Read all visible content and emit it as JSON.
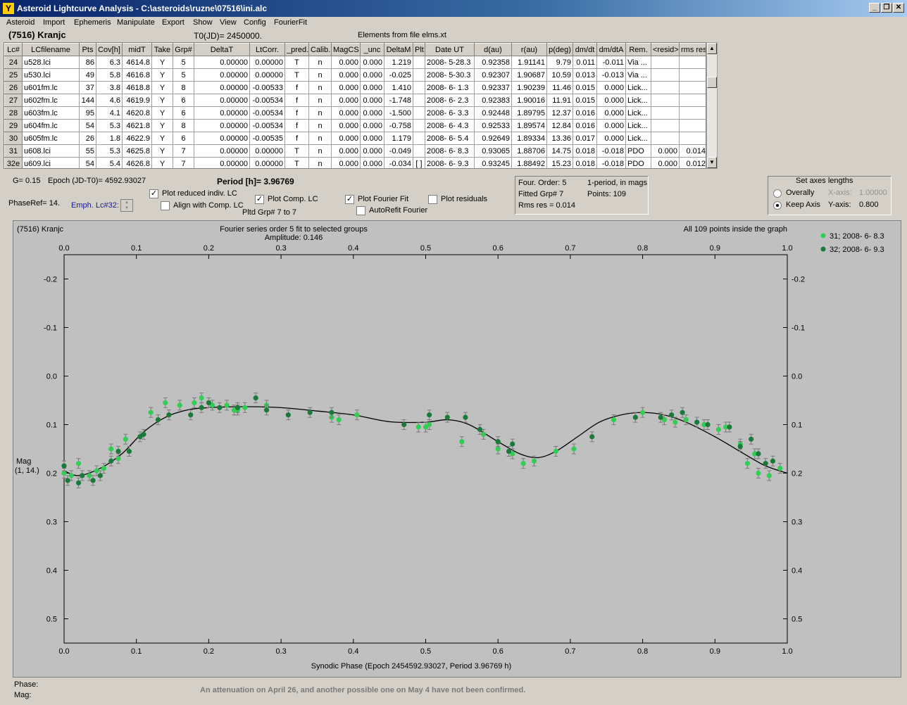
{
  "window": {
    "title": "Asteroid Lightcurve Analysis - C:\\asteroids\\ruzne\\07516\\ini.alc",
    "icon": "app-icon"
  },
  "menu": [
    "Asteroid",
    "Import",
    "Ephemeris",
    "Manipulate",
    "Export",
    "Show",
    "View",
    "Config",
    "FourierFit"
  ],
  "header": {
    "object": "(7516) Kranjc",
    "t0": "T0(JD)= 2450000.",
    "elements": "Elements from file elms.xt"
  },
  "table": {
    "columns": [
      "Lc#",
      "LCfilename",
      "Pts",
      "Cov[h]",
      "midT",
      "Take",
      "Grp#",
      "DeltaT",
      "LtCorr.",
      "_pred.",
      "Calib.",
      "MagCS",
      "_unc",
      "DeltaM",
      "Plt",
      "Date UT",
      "d(au)",
      "r(au)",
      "p(deg)",
      "dm/dt",
      "dm/dtA",
      "Rem.",
      "<resid>",
      "rms res"
    ],
    "rows": [
      [
        "24",
        "u528.lci",
        "86",
        "6.3",
        "4614.8",
        "Y",
        "5",
        "0.00000",
        "0.00000",
        "T",
        "n",
        "0.000",
        "0.000",
        "1.219",
        "",
        "2008- 5-28.3",
        "0.92358",
        "1.91141",
        "9.79",
        "0.011",
        "-0.011",
        "Via ...",
        "",
        ""
      ],
      [
        "25",
        "u530.lci",
        "49",
        "5.8",
        "4616.8",
        "Y",
        "5",
        "0.00000",
        "0.00000",
        "T",
        "n",
        "0.000",
        "0.000",
        "-0.025",
        "",
        "2008- 5-30.3",
        "0.92307",
        "1.90687",
        "10.59",
        "0.013",
        "-0.013",
        "Via ...",
        "",
        ""
      ],
      [
        "26",
        "u601fm.lc",
        "37",
        "3.8",
        "4618.8",
        "Y",
        "8",
        "0.00000",
        "-0.00533",
        "f",
        "n",
        "0.000",
        "0.000",
        "1.410",
        "",
        "2008- 6- 1.3",
        "0.92337",
        "1.90239",
        "11.46",
        "0.015",
        "0.000",
        "Lick...",
        "",
        ""
      ],
      [
        "27",
        "u602fm.lc",
        "144",
        "4.6",
        "4619.9",
        "Y",
        "6",
        "0.00000",
        "-0.00534",
        "f",
        "n",
        "0.000",
        "0.000",
        "-1.748",
        "",
        "2008- 6- 2.3",
        "0.92383",
        "1.90016",
        "11.91",
        "0.015",
        "0.000",
        "Lick...",
        "",
        ""
      ],
      [
        "28",
        "u603fm.lc",
        "95",
        "4.1",
        "4620.8",
        "Y",
        "6",
        "0.00000",
        "-0.00534",
        "f",
        "n",
        "0.000",
        "0.000",
        "-1.500",
        "",
        "2008- 6- 3.3",
        "0.92448",
        "1.89795",
        "12.37",
        "0.016",
        "0.000",
        "Lick...",
        "",
        ""
      ],
      [
        "29",
        "u604fm.lc",
        "54",
        "5.3",
        "4621.8",
        "Y",
        "8",
        "0.00000",
        "-0.00534",
        "f",
        "n",
        "0.000",
        "0.000",
        "-0.758",
        "",
        "2008- 6- 4.3",
        "0.92533",
        "1.89574",
        "12.84",
        "0.016",
        "0.000",
        "Lick...",
        "",
        ""
      ],
      [
        "30",
        "u605fm.lc",
        "26",
        "1.8",
        "4622.9",
        "Y",
        "6",
        "0.00000",
        "-0.00535",
        "f",
        "n",
        "0.000",
        "0.000",
        "1.179",
        "",
        "2008- 6- 5.4",
        "0.92649",
        "1.89334",
        "13.36",
        "0.017",
        "0.000",
        "Lick...",
        "",
        ""
      ],
      [
        "31",
        "u608.lci",
        "55",
        "5.3",
        "4625.8",
        "Y",
        "7",
        "0.00000",
        "0.00000",
        "T",
        "n",
        "0.000",
        "0.000",
        "-0.049",
        "",
        "2008- 6- 8.3",
        "0.93065",
        "1.88706",
        "14.75",
        "0.018",
        "-0.018",
        "PDO",
        "0.000",
        "0.014"
      ],
      [
        "32e",
        "u609.lci",
        "54",
        "5.4",
        "4626.8",
        "Y",
        "7",
        "0.00000",
        "0.00000",
        "T",
        "n",
        "0.000",
        "0.000",
        "-0.034",
        "[ ]",
        "2008- 6- 9.3",
        "0.93245",
        "1.88492",
        "15.23",
        "0.018",
        "-0.018",
        "PDO",
        "0.000",
        "0.012"
      ]
    ]
  },
  "controls": {
    "g": "G= 0.15",
    "epoch": "Epoch (JD-T0)= 4592.93027",
    "period": "Period [h]= 3.96769",
    "phaseref": "PhaseRef= 14.",
    "emph": "Emph. Lc#32:",
    "plot_reduced": "Plot reduced indiv. LC",
    "align_comp": "Align with Comp. LC",
    "plot_comp": "Plot Comp. LC",
    "pltd_grp": "Pltd Grp#  7   to   7",
    "plot_fourier": "Plot Fourier Fit",
    "autorefit": "AutoRefit Fourier",
    "plot_residuals": "Plot residuals",
    "four_order": "Four. Order:  5",
    "one_period": "1-period, in mags",
    "fitted_grp": "Fitted Grp# 7",
    "points": "Points: 109",
    "rms": "Rms res      = 0.014",
    "axes_title": "Set axes lengths",
    "overally": "Overally",
    "keep_axis": "Keep Axis",
    "xaxis_label": "X-axis:",
    "xaxis_val": "1.00000",
    "yaxis_label": "Y-axis:",
    "yaxis_val": "0.800"
  },
  "plot": {
    "object": "(7516) Kranjc",
    "fit_title": "Fourier series order 5 fit to selected groups",
    "amplitude": "Amplitude: 0.146",
    "points_note": "All 109 points inside the graph",
    "ylabel": "Mag",
    "ylabel2": "(1, 14.)",
    "xlabel": "Synodic Phase (Epoch 2454592.93027, Period 3.96769 h)",
    "legend": [
      {
        "label": "31; 2008- 6- 8.3",
        "color": "#33cc55"
      },
      {
        "label": "32; 2008- 6- 9.3",
        "color": "#1a7a3a"
      }
    ]
  },
  "chart_data": {
    "type": "scatter",
    "xlim": [
      0.0,
      1.0
    ],
    "ylim": [
      -0.25,
      0.55
    ],
    "y_inverted": true,
    "x_ticks": [
      "0.0",
      "0.1",
      "0.2",
      "0.3",
      "0.4",
      "0.5",
      "0.6",
      "0.7",
      "0.8",
      "0.9",
      "1.0"
    ],
    "y_ticks": [
      "-0.2",
      "-0.1",
      "0.0",
      "0.1",
      "0.2",
      "0.3",
      "0.4",
      "0.5"
    ],
    "series": [
      {
        "name": "31; 2008- 6- 8.3",
        "color": "#33cc55",
        "x": [
          0.0,
          0.01,
          0.02,
          0.035,
          0.045,
          0.055,
          0.065,
          0.075,
          0.085,
          0.12,
          0.14,
          0.16,
          0.18,
          0.19,
          0.205,
          0.225,
          0.235,
          0.25,
          0.24,
          0.28,
          0.37,
          0.38,
          0.405,
          0.49,
          0.5,
          0.505,
          0.55,
          0.58,
          0.6,
          0.62,
          0.635,
          0.65,
          0.68,
          0.705,
          0.76,
          0.8,
          0.83,
          0.845,
          0.86,
          0.885,
          0.905,
          0.915,
          0.935,
          0.945,
          0.955,
          0.96,
          0.975,
          0.99
        ],
        "y": [
          0.2,
          0.205,
          0.18,
          0.205,
          0.195,
          0.19,
          0.15,
          0.17,
          0.13,
          0.075,
          0.055,
          0.06,
          0.055,
          0.045,
          0.06,
          0.06,
          0.07,
          0.065,
          0.07,
          0.06,
          0.085,
          0.09,
          0.08,
          0.105,
          0.105,
          0.1,
          0.135,
          0.12,
          0.15,
          0.16,
          0.18,
          0.175,
          0.155,
          0.15,
          0.09,
          0.075,
          0.09,
          0.095,
          0.09,
          0.1,
          0.11,
          0.105,
          0.14,
          0.18,
          0.16,
          0.2,
          0.205,
          0.19
        ]
      },
      {
        "name": "32; 2008- 6- 9.3",
        "color": "#1a7a3a",
        "x": [
          0.0,
          0.005,
          0.02,
          0.025,
          0.04,
          0.05,
          0.065,
          0.075,
          0.09,
          0.105,
          0.11,
          0.13,
          0.145,
          0.175,
          0.19,
          0.2,
          0.215,
          0.24,
          0.265,
          0.28,
          0.31,
          0.34,
          0.37,
          0.47,
          0.505,
          0.53,
          0.555,
          0.575,
          0.6,
          0.615,
          0.62,
          0.73,
          0.79,
          0.825,
          0.84,
          0.855,
          0.875,
          0.89,
          0.92,
          0.935,
          0.95,
          0.96,
          0.97,
          0.98
        ],
        "y": [
          0.185,
          0.215,
          0.22,
          0.205,
          0.215,
          0.205,
          0.175,
          0.155,
          0.155,
          0.125,
          0.12,
          0.09,
          0.08,
          0.08,
          0.065,
          0.055,
          0.065,
          0.065,
          0.045,
          0.07,
          0.08,
          0.075,
          0.075,
          0.1,
          0.08,
          0.085,
          0.085,
          0.11,
          0.135,
          0.155,
          0.14,
          0.125,
          0.085,
          0.085,
          0.08,
          0.075,
          0.095,
          0.1,
          0.105,
          0.145,
          0.13,
          0.16,
          0.18,
          0.175
        ]
      }
    ],
    "fit_curve": {
      "x": [
        0.0,
        0.02,
        0.05,
        0.08,
        0.11,
        0.14,
        0.17,
        0.2,
        0.25,
        0.3,
        0.35,
        0.4,
        0.45,
        0.5,
        0.53,
        0.56,
        0.6,
        0.63,
        0.655,
        0.68,
        0.71,
        0.74,
        0.77,
        0.8,
        0.83,
        0.86,
        0.9,
        0.94,
        0.97,
        1.0
      ],
      "y": [
        0.195,
        0.205,
        0.19,
        0.16,
        0.115,
        0.085,
        0.07,
        0.065,
        0.063,
        0.065,
        0.072,
        0.08,
        0.094,
        0.095,
        0.09,
        0.1,
        0.135,
        0.16,
        0.168,
        0.155,
        0.125,
        0.095,
        0.08,
        0.075,
        0.08,
        0.095,
        0.125,
        0.16,
        0.185,
        0.2
      ]
    }
  },
  "status": {
    "phase_label": "Phase:",
    "mag_label": "Mag:",
    "message": "An attenuation on April 26, and another possible one on May 4 have not been confirmed."
  }
}
